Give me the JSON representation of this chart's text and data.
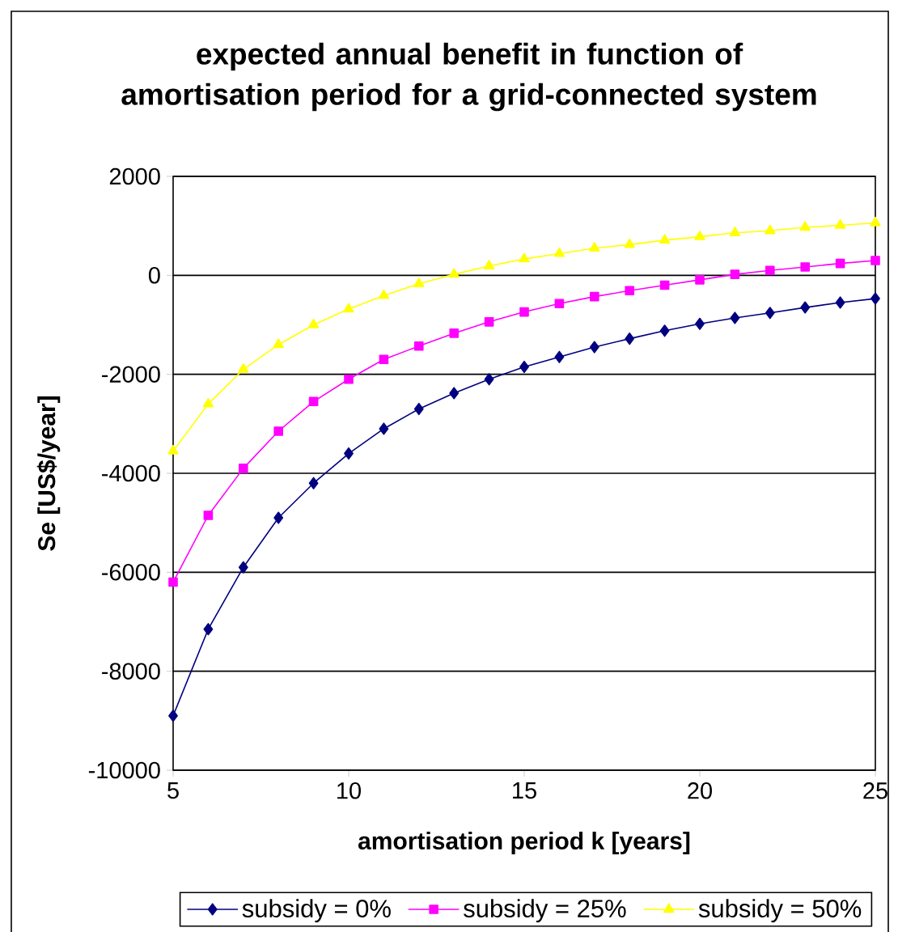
{
  "chart_data": {
    "type": "line",
    "title": "expected annual benefit in function of amortisation period for a grid-connected system",
    "xlabel": "amortisation period k [years]",
    "ylabel": "Se [US$/year]",
    "x": [
      5,
      6,
      7,
      8,
      9,
      10,
      11,
      12,
      13,
      14,
      15,
      16,
      17,
      18,
      19,
      20,
      21,
      22,
      23,
      24,
      25
    ],
    "series": [
      {
        "name": "subsidy = 0%",
        "color": "#000080",
        "marker": "diamond",
        "values": [
          -8900,
          -7150,
          -5900,
          -4900,
          -4200,
          -3600,
          -3100,
          -2700,
          -2380,
          -2100,
          -1850,
          -1650,
          -1450,
          -1280,
          -1120,
          -980,
          -860,
          -760,
          -650,
          -550,
          -470
        ]
      },
      {
        "name": "subsidy = 25%",
        "color": "#ff00ff",
        "marker": "square",
        "values": [
          -6200,
          -4850,
          -3900,
          -3150,
          -2550,
          -2100,
          -1700,
          -1430,
          -1170,
          -940,
          -740,
          -570,
          -430,
          -310,
          -200,
          -90,
          20,
          100,
          170,
          240,
          300
        ]
      },
      {
        "name": "subsidy = 50%",
        "color": "#ffff00",
        "marker": "triangle",
        "values": [
          -3550,
          -2600,
          -1900,
          -1400,
          -1000,
          -680,
          -410,
          -170,
          20,
          190,
          330,
          440,
          550,
          620,
          710,
          780,
          860,
          900,
          970,
          1010,
          1060
        ]
      }
    ],
    "xlim": [
      5,
      25
    ],
    "xticks": [
      5,
      10,
      15,
      20,
      25
    ],
    "ylim": [
      -10000,
      2000
    ],
    "yticks": [
      -10000,
      -8000,
      -6000,
      -4000,
      -2000,
      0,
      2000
    ],
    "grid": "y",
    "legend": "bottom",
    "line_style": "solid"
  }
}
